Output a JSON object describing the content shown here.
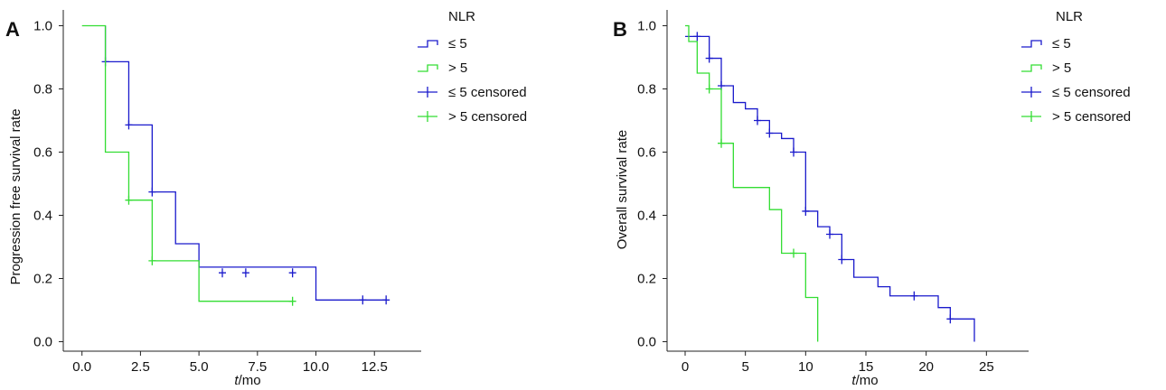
{
  "colors": {
    "low": "#1a1acc",
    "high": "#33dd33",
    "axis": "#222222"
  },
  "chart_data": [
    {
      "type": "line",
      "panel": "A",
      "xlabel_italic": "t",
      "xlabel_rest": "/mo",
      "ylabel": "Progression free survival rate",
      "xlim": [
        -0.8,
        14.5
      ],
      "ylim": [
        -0.03,
        1.05
      ],
      "xticks": [
        0,
        2.5,
        5,
        7.5,
        10,
        12.5
      ],
      "xtick_labels": [
        "0.0",
        "2.5",
        "5.0",
        "7.5",
        "10.0",
        "12.5"
      ],
      "yticks": [
        0,
        0.2,
        0.4,
        0.6,
        0.8,
        1.0
      ],
      "ytick_labels": [
        "0.0",
        "0.2",
        "0.4",
        "0.6",
        "0.8",
        "1.0"
      ],
      "legend_title": "NLR",
      "legend_labels": [
        "≤ 5",
        "> 5",
        "≤ 5 censored",
        "> 5 censored"
      ],
      "series": [
        {
          "key": "low",
          "name": "≤ 5",
          "x": [
            1,
            1,
            2,
            3,
            4,
            5,
            10,
            13
          ],
          "y": [
            1.0,
            0.886,
            0.686,
            0.474,
            0.31,
            0.236,
            0.132,
            0.132
          ],
          "censored_x": [
            1,
            2,
            3,
            6,
            7,
            9,
            12,
            13
          ],
          "censored_y": [
            0.886,
            0.686,
            0.474,
            0.218,
            0.218,
            0.218,
            0.132,
            0.132
          ]
        },
        {
          "key": "high",
          "name": "> 5",
          "x": [
            0,
            1,
            2,
            3,
            5,
            9
          ],
          "y": [
            1.0,
            0.6,
            0.448,
            0.256,
            0.128,
            0.128
          ],
          "censored_x": [
            2,
            3,
            9
          ],
          "censored_y": [
            0.448,
            0.256,
            0.128
          ]
        }
      ]
    },
    {
      "type": "line",
      "panel": "B",
      "xlabel_italic": "t",
      "xlabel_rest": "/mo",
      "ylabel": "Overall survival rate",
      "xlim": [
        -1.5,
        28.5
      ],
      "ylim": [
        -0.03,
        1.05
      ],
      "xticks": [
        0,
        5,
        10,
        15,
        20,
        25
      ],
      "xtick_labels": [
        "0",
        "5",
        "10",
        "15",
        "20",
        "25"
      ],
      "yticks": [
        0,
        0.2,
        0.4,
        0.6,
        0.8,
        1.0
      ],
      "ytick_labels": [
        "0.0",
        "0.2",
        "0.4",
        "0.6",
        "0.8",
        "1.0"
      ],
      "legend_title": "NLR",
      "legend_labels": [
        "≤ 5",
        "> 5",
        "≤ 5 censored",
        "> 5 censored"
      ],
      "series": [
        {
          "key": "low",
          "name": "≤ 5",
          "x": [
            0,
            2,
            3,
            4,
            5,
            6,
            7,
            8,
            9,
            10,
            11,
            12,
            13,
            14,
            16,
            17,
            19,
            21,
            22,
            24
          ],
          "y": [
            0.966,
            0.897,
            0.81,
            0.757,
            0.737,
            0.7,
            0.66,
            0.643,
            0.6,
            0.413,
            0.364,
            0.34,
            0.26,
            0.204,
            0.174,
            0.145,
            0.145,
            0.108,
            0.072,
            0.0
          ],
          "censored_x": [
            1,
            2,
            3,
            6,
            7,
            9,
            10,
            12,
            13,
            19,
            22
          ],
          "censored_y": [
            0.966,
            0.897,
            0.81,
            0.7,
            0.66,
            0.6,
            0.413,
            0.34,
            0.26,
            0.145,
            0.072
          ]
        },
        {
          "key": "high",
          "name": "> 5",
          "x": [
            0,
            0.3,
            1,
            2,
            3,
            4,
            7,
            8,
            10,
            11
          ],
          "y": [
            1.0,
            0.95,
            0.85,
            0.8,
            0.628,
            0.488,
            0.418,
            0.28,
            0.14,
            0.0
          ],
          "censored_x": [
            2,
            3,
            9
          ],
          "censored_y": [
            0.8,
            0.628,
            0.28
          ]
        }
      ]
    }
  ]
}
